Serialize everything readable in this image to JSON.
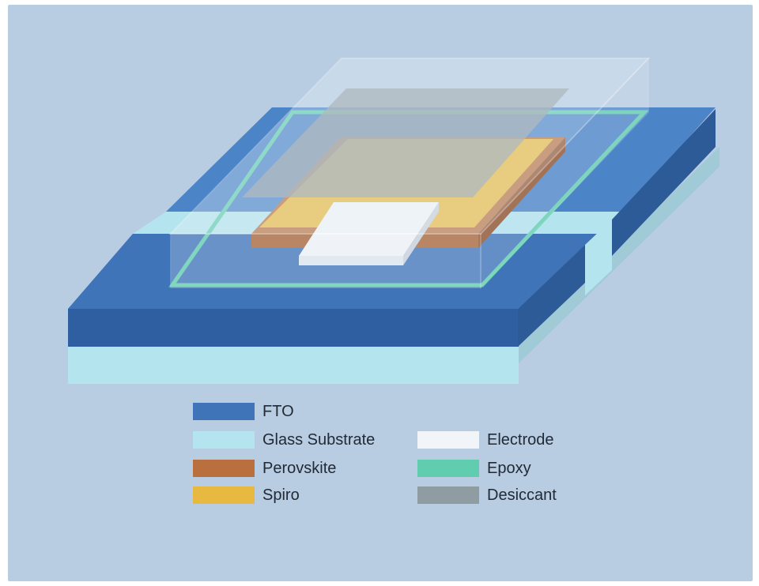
{
  "colors": {
    "background": "#b8cce2",
    "fto": "#3f74b8",
    "glass_substrate": "#b4e4ee",
    "perovskite": "#b9703e",
    "spiro": "#e8b940",
    "electrode": "#f2f5f8",
    "epoxy": "#5fcdae",
    "desiccant": "#8f9ca2"
  },
  "legend": [
    {
      "label": "FTO",
      "color": "#3f74b8"
    },
    {
      "label": "Glass Substrate",
      "color": "#b4e4ee"
    },
    {
      "label": "Perovskite",
      "color": "#b9703e"
    },
    {
      "label": "Spiro",
      "color": "#e8b940"
    },
    {
      "label": "Electrode",
      "color": "#f2f5f8"
    },
    {
      "label": "Epoxy",
      "color": "#5fcdae"
    },
    {
      "label": "Desiccant",
      "color": "#8f9ca2"
    }
  ]
}
